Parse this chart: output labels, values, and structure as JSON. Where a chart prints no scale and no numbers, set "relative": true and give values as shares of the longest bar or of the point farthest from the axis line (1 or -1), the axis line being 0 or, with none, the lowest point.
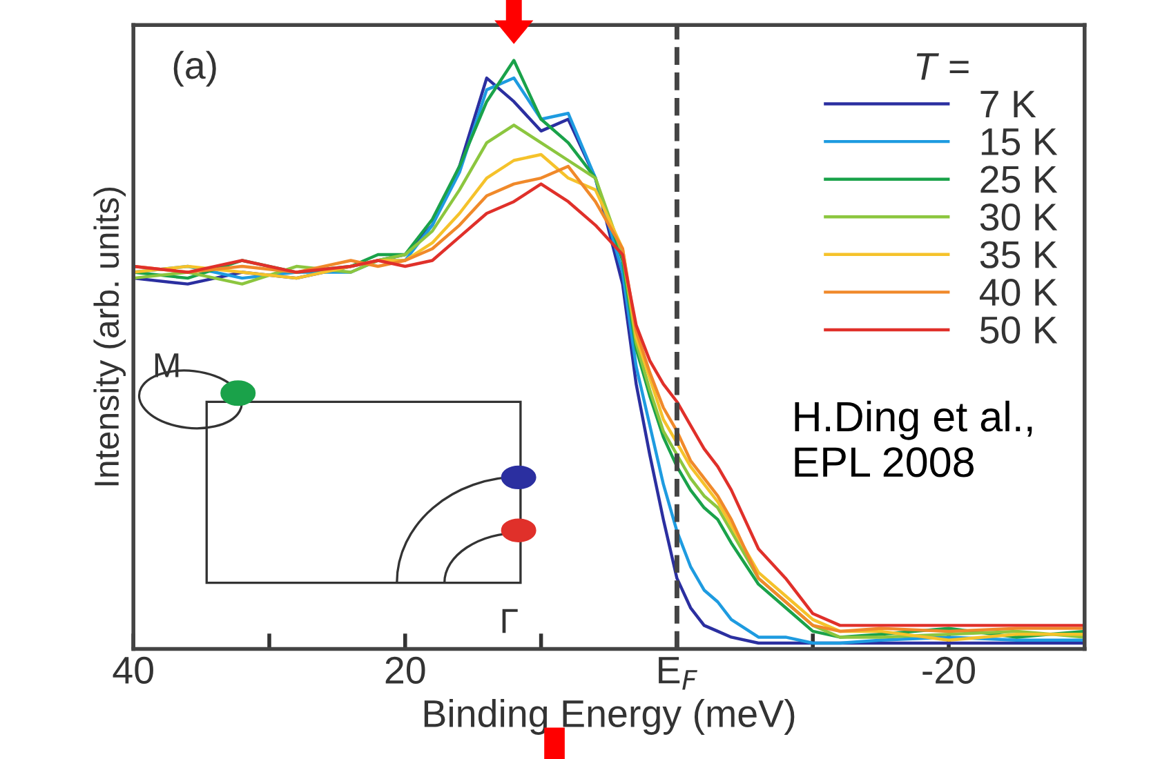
{
  "chart_data": {
    "type": "line",
    "relative": true,
    "xlabel": "Binding Energy (meV)",
    "ylabel": "Intensity (arb. units)",
    "legend_title": "T =",
    "legend": "top right",
    "grid": false,
    "marker": "none",
    "line_style": "solid",
    "xlim": [
      40,
      -30
    ],
    "xticks": [
      40,
      {
        "value": 30,
        "label": null
      },
      20,
      {
        "value": 10,
        "label": null
      },
      {
        "value": 0,
        "label": "E$_{F}$"
      },
      {
        "value": -10,
        "label": null
      },
      -20
    ],
    "tick_labels": "x",
    "x": [
      40,
      36,
      32,
      28,
      24,
      22,
      20,
      18,
      16,
      14,
      12,
      10,
      8,
      6,
      4,
      3,
      2,
      1,
      0,
      -1,
      -2,
      -3,
      -4,
      -6,
      -8,
      -10,
      -12,
      -15,
      -20,
      -25,
      -30
    ],
    "series": [
      {
        "name": "7 K",
        "color": "#2b2fa0",
        "values": [
          0.63,
          0.62,
          0.64,
          0.63,
          0.65,
          0.66,
          0.67,
          0.72,
          0.82,
          0.97,
          0.93,
          0.88,
          0.9,
          0.8,
          0.62,
          0.45,
          0.33,
          0.22,
          0.12,
          0.07,
          0.04,
          0.03,
          0.02,
          0.01,
          0.01,
          0.01,
          0.01,
          0.01,
          0.01,
          0.01,
          0.01
        ]
      },
      {
        "name": "15 K",
        "color": "#1e9be0",
        "values": [
          0.64,
          0.65,
          0.63,
          0.64,
          0.64,
          0.66,
          0.66,
          0.72,
          0.81,
          0.95,
          0.97,
          0.9,
          0.91,
          0.8,
          0.64,
          0.48,
          0.38,
          0.28,
          0.2,
          0.14,
          0.1,
          0.08,
          0.05,
          0.02,
          0.02,
          0.01,
          0.01,
          0.015,
          0.02,
          0.015,
          0.015
        ]
      },
      {
        "name": "25 K",
        "color": "#1aa24a",
        "values": [
          0.64,
          0.63,
          0.66,
          0.64,
          0.65,
          0.67,
          0.67,
          0.73,
          0.82,
          0.93,
          1.0,
          0.9,
          0.86,
          0.8,
          0.66,
          0.51,
          0.43,
          0.36,
          0.31,
          0.27,
          0.24,
          0.22,
          0.18,
          0.11,
          0.07,
          0.03,
          0.02,
          0.025,
          0.035,
          0.02,
          0.03
        ]
      },
      {
        "name": "30 K",
        "color": "#8cc63f",
        "values": [
          0.63,
          0.64,
          0.62,
          0.65,
          0.64,
          0.66,
          0.67,
          0.71,
          0.78,
          0.86,
          0.89,
          0.86,
          0.83,
          0.8,
          0.67,
          0.52,
          0.44,
          0.37,
          0.33,
          0.29,
          0.26,
          0.24,
          0.2,
          0.12,
          0.08,
          0.04,
          0.02,
          0.02,
          0.025,
          0.03,
          0.02
        ]
      },
      {
        "name": "35 K",
        "color": "#f5c22b",
        "values": [
          0.64,
          0.65,
          0.64,
          0.63,
          0.65,
          0.66,
          0.66,
          0.69,
          0.74,
          0.8,
          0.83,
          0.84,
          0.8,
          0.78,
          0.68,
          0.53,
          0.46,
          0.39,
          0.35,
          0.31,
          0.28,
          0.25,
          0.21,
          0.13,
          0.09,
          0.05,
          0.03,
          0.03,
          0.015,
          0.025,
          0.025
        ]
      },
      {
        "name": "40 K",
        "color": "#f0892a",
        "values": [
          0.65,
          0.64,
          0.65,
          0.64,
          0.66,
          0.65,
          0.66,
          0.68,
          0.72,
          0.77,
          0.79,
          0.8,
          0.82,
          0.76,
          0.68,
          0.54,
          0.47,
          0.41,
          0.37,
          0.32,
          0.29,
          0.26,
          0.22,
          0.12,
          0.08,
          0.04,
          0.03,
          0.035,
          0.03,
          0.035,
          0.035
        ]
      },
      {
        "name": "50 K",
        "color": "#e0302a",
        "values": [
          0.65,
          0.64,
          0.66,
          0.64,
          0.65,
          0.66,
          0.65,
          0.66,
          0.7,
          0.74,
          0.76,
          0.79,
          0.76,
          0.72,
          0.67,
          0.55,
          0.49,
          0.45,
          0.42,
          0.38,
          0.34,
          0.31,
          0.27,
          0.17,
          0.12,
          0.06,
          0.04,
          0.04,
          0.04,
          0.04,
          0.04
        ]
      }
    ],
    "ref_lines": [
      {
        "axis": "x",
        "value": 0,
        "color": "#444444",
        "line_style": "dashed"
      }
    ],
    "annotations": [
      "(a)",
      "H.Ding et al.,\nEPL 2008",
      "M",
      "Γ"
    ]
  }
}
